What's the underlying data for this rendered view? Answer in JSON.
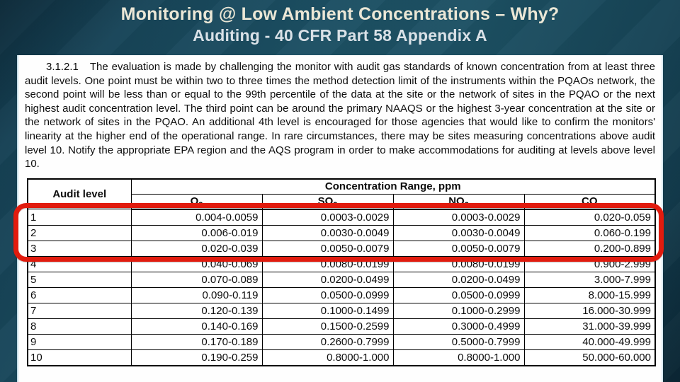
{
  "slide": {
    "title": "Monitoring @ Low Ambient Concentrations – Why?",
    "subtitle": "Auditing - 40 CFR Part 58 Appendix A"
  },
  "document": {
    "section_number": "3.1.2.1",
    "paragraph": "The evaluation is made by challenging the monitor with audit gas standards of known concentration from at least three audit levels. One point must be within two to three times the method detection limit of the instruments within the PQAOs network, the second point will be less than or equal to the 99th percentile of the data at the site or the network of sites in the PQAO or the next highest audit concentration level. The third point can be around the primary NAAQS or the highest 3-year concentration at the site or the network of sites in the PQAO. An additional 4th level is encouraged for those agencies that would like to confirm the monitors' linearity at the higher end of the operational range. In rare circumstances, there may be sites measuring concentrations above audit level 10. Notify the appropriate EPA region and the AQS program in order to make accommodations for auditing at levels above level 10."
  },
  "table": {
    "row_header": "Audit level",
    "span_header": "Concentration Range, ppm",
    "columns": [
      {
        "id": "o3",
        "symbol": "O",
        "subscript": "3"
      },
      {
        "id": "so2",
        "symbol": "SO",
        "subscript": "2"
      },
      {
        "id": "no2",
        "symbol": "NO",
        "subscript": "2"
      },
      {
        "id": "co",
        "symbol": "CO",
        "subscript": ""
      }
    ],
    "rows": [
      {
        "level": "1",
        "values": [
          "0.004-0.0059",
          "0.0003-0.0029",
          "0.0003-0.0029",
          "0.020-0.059"
        ]
      },
      {
        "level": "2",
        "values": [
          "0.006-0.019",
          "0.0030-0.0049",
          "0.0030-0.0049",
          "0.060-0.199"
        ]
      },
      {
        "level": "3",
        "values": [
          "0.020-0.039",
          "0.0050-0.0079",
          "0.0050-0.0079",
          "0.200-0.899"
        ]
      },
      {
        "level": "4",
        "values": [
          "0.040-0.069",
          "0.0080-0.0199",
          "0.0080-0.0199",
          "0.900-2.999"
        ]
      },
      {
        "level": "5",
        "values": [
          "0.070-0.089",
          "0.0200-0.0499",
          "0.0200-0.0499",
          "3.000-7.999"
        ]
      },
      {
        "level": "6",
        "values": [
          "0.090-0.119",
          "0.0500-0.0999",
          "0.0500-0.0999",
          "8.000-15.999"
        ]
      },
      {
        "level": "7",
        "values": [
          "0.120-0.139",
          "0.1000-0.1499",
          "0.1000-0.2999",
          "16.000-30.999"
        ]
      },
      {
        "level": "8",
        "values": [
          "0.140-0.169",
          "0.1500-0.2599",
          "0.3000-0.4999",
          "31.000-39.999"
        ]
      },
      {
        "level": "9",
        "values": [
          "0.170-0.189",
          "0.2600-0.7999",
          "0.5000-0.7999",
          "40.000-49.999"
        ]
      },
      {
        "level": "10",
        "values": [
          "0.190-0.259",
          "0.8000-1.000",
          "0.8000-1.000",
          "50.000-60.000"
        ]
      }
    ],
    "highlighted_levels": "1-3"
  },
  "colors": {
    "accent_red": "#e11b0e",
    "background_teal": "#1c4f63",
    "title_text": "#ebe7d6",
    "subtitle_text": "#d9e1e7",
    "panel_background": "#fefefe"
  }
}
